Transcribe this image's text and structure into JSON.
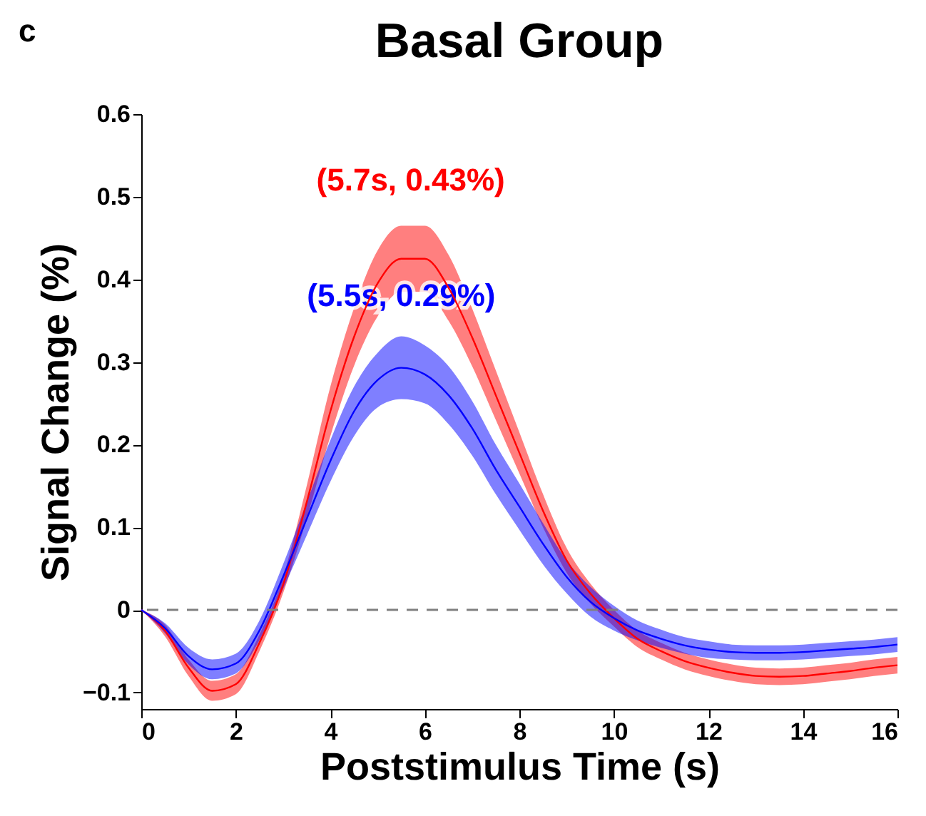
{
  "chart_data": {
    "type": "line",
    "title": "Basal Group",
    "xlabel": "Poststimulus Time (s)",
    "ylabel": "Signal Change (%)",
    "xlim": [
      0,
      16
    ],
    "xticks": [
      0,
      2,
      4,
      6,
      8,
      10,
      12,
      14,
      16
    ],
    "ylim": [
      -0.12,
      0.6
    ],
    "yticks": [
      -0.1,
      0,
      0.1,
      0.2,
      0.3,
      0.4,
      0.5,
      0.6
    ],
    "grid": false,
    "line_style": "solid",
    "marker": "none",
    "x": [
      0,
      0.5,
      1,
      1.5,
      2,
      2.5,
      3,
      3.5,
      4,
      4.5,
      5,
      5.5,
      6,
      6.5,
      7,
      7.5,
      8,
      8.5,
      9,
      9.5,
      10,
      10.5,
      11,
      11.5,
      12,
      12.5,
      13,
      13.5,
      14,
      14.5,
      15,
      15.5,
      16
    ],
    "series": [
      {
        "color": "#ff0000",
        "values": [
          0,
          -0.025,
          -0.07,
          -0.098,
          -0.09,
          -0.04,
          0.03,
          0.13,
          0.24,
          0.33,
          0.395,
          0.425,
          0.425,
          0.39,
          0.33,
          0.26,
          0.19,
          0.12,
          0.06,
          0.02,
          -0.01,
          -0.035,
          -0.05,
          -0.062,
          -0.07,
          -0.076,
          -0.08,
          -0.081,
          -0.08,
          -0.077,
          -0.074,
          -0.07,
          -0.067
        ],
        "lower": [
          0,
          -0.032,
          -0.08,
          -0.11,
          -0.102,
          -0.05,
          0.02,
          0.11,
          0.21,
          0.295,
          0.355,
          0.385,
          0.385,
          0.35,
          0.295,
          0.23,
          0.165,
          0.1,
          0.045,
          0.008,
          -0.02,
          -0.045,
          -0.06,
          -0.072,
          -0.08,
          -0.086,
          -0.09,
          -0.091,
          -0.09,
          -0.087,
          -0.084,
          -0.08,
          -0.077
        ],
        "upper": [
          0,
          -0.018,
          -0.06,
          -0.086,
          -0.078,
          -0.03,
          0.04,
          0.15,
          0.27,
          0.365,
          0.435,
          0.465,
          0.465,
          0.43,
          0.365,
          0.29,
          0.215,
          0.14,
          0.075,
          0.032,
          0,
          -0.025,
          -0.04,
          -0.052,
          -0.06,
          -0.066,
          -0.07,
          -0.071,
          -0.07,
          -0.067,
          -0.064,
          -0.06,
          -0.057
        ]
      },
      {
        "color": "#0000ff",
        "values": [
          0,
          -0.022,
          -0.056,
          -0.072,
          -0.065,
          -0.025,
          0.04,
          0.11,
          0.18,
          0.24,
          0.278,
          0.293,
          0.285,
          0.26,
          0.22,
          0.17,
          0.125,
          0.08,
          0.04,
          0.01,
          -0.01,
          -0.025,
          -0.035,
          -0.043,
          -0.048,
          -0.051,
          -0.052,
          -0.052,
          -0.051,
          -0.049,
          -0.047,
          -0.045,
          -0.042
        ],
        "lower": [
          0,
          -0.028,
          -0.066,
          -0.084,
          -0.077,
          -0.037,
          0.025,
          0.09,
          0.155,
          0.21,
          0.245,
          0.255,
          0.25,
          0.225,
          0.187,
          0.14,
          0.097,
          0.055,
          0.02,
          -0.008,
          -0.025,
          -0.037,
          -0.046,
          -0.053,
          -0.058,
          -0.06,
          -0.061,
          -0.061,
          -0.06,
          -0.058,
          -0.056,
          -0.054,
          -0.051
        ],
        "upper": [
          0,
          -0.016,
          -0.046,
          -0.06,
          -0.053,
          -0.013,
          0.055,
          0.13,
          0.205,
          0.27,
          0.311,
          0.331,
          0.32,
          0.295,
          0.253,
          0.2,
          0.153,
          0.105,
          0.06,
          0.028,
          0.005,
          -0.013,
          -0.024,
          -0.033,
          -0.038,
          -0.042,
          -0.043,
          -0.043,
          -0.042,
          -0.04,
          -0.038,
          -0.036,
          -0.033
        ]
      }
    ],
    "ref_lines": [
      {
        "axis": "y",
        "value": 0,
        "color": "#808080",
        "line_style": "dashed"
      }
    ],
    "annotations": [
      "c",
      {
        "text": "(5.7s, 0.43%)",
        "x": 5.7,
        "y": 0.43
      },
      {
        "text": "(5.5s, 0.29%)",
        "x": 5.5,
        "y": 0.29
      }
    ]
  }
}
